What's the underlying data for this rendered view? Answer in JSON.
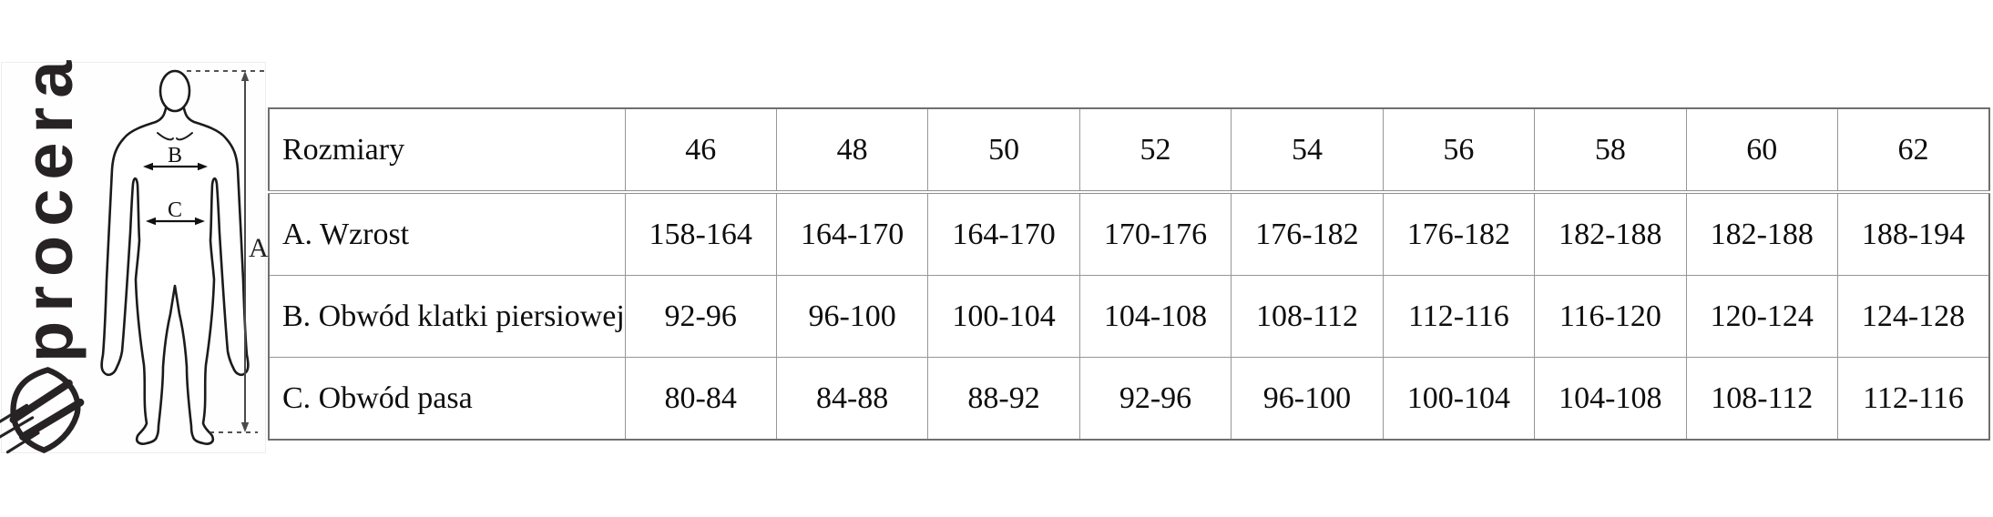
{
  "brand": {
    "name": "procera",
    "color": "#272324",
    "icon": "brand-shield-icon"
  },
  "figure": {
    "description": "standing human silhouette with measurement arrows",
    "labels": {
      "height": "A",
      "chest": "B",
      "waist": "C"
    }
  },
  "chart_data": {
    "type": "table",
    "title": "",
    "header_label": "Rozmiary",
    "columns": [
      "46",
      "48",
      "50",
      "52",
      "54",
      "56",
      "58",
      "60",
      "62"
    ],
    "rows": [
      {
        "label": "A. Wzrost",
        "values": [
          "158-164",
          "164-170",
          "164-170",
          "170-176",
          "176-182",
          "176-182",
          "182-188",
          "182-188",
          "188-194"
        ]
      },
      {
        "label": "B. Obwód klatki piersiowej",
        "values": [
          "92-96",
          "96-100",
          "100-104",
          "104-108",
          "108-112",
          "112-116",
          "116-120",
          "120-124",
          "124-128"
        ]
      },
      {
        "label": "C. Obwód pasa",
        "values": [
          "80-84",
          "84-88",
          "88-92",
          "92-96",
          "96-100",
          "100-104",
          "104-108",
          "108-112",
          "112-116"
        ]
      }
    ],
    "grid": true,
    "border_color": "#979797",
    "text_color": "#0d0d0d"
  }
}
